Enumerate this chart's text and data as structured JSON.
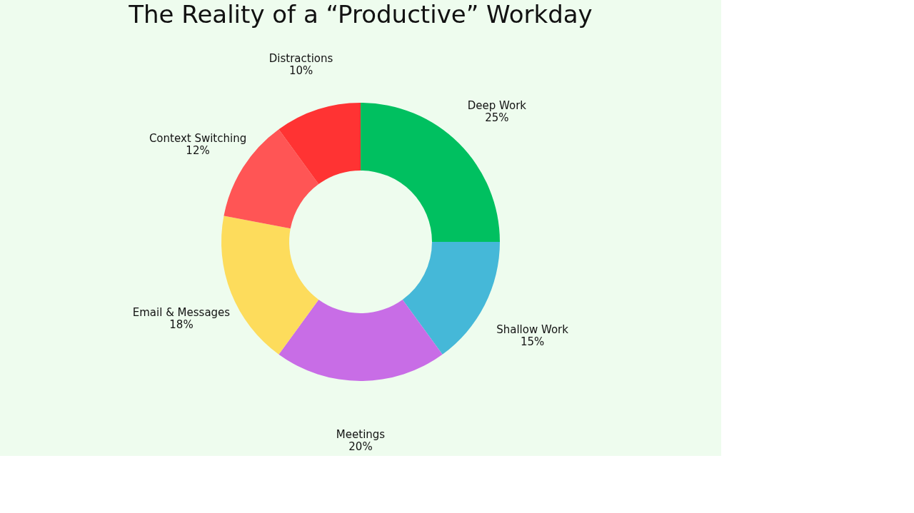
{
  "chart_data": {
    "type": "donut",
    "title": "The Reality of a “Productive” Workday",
    "categories": [
      "Deep Work",
      "Shallow Work",
      "Meetings",
      "Email & Messages",
      "Context Switching",
      "Distractions"
    ],
    "values": [
      25,
      15,
      20,
      18,
      12,
      10
    ],
    "colors": [
      "#00c060",
      "#45b8d8",
      "#c86de6",
      "#fddc5c",
      "#ff5555",
      "#ff3333"
    ],
    "value_labels": [
      "25%",
      "15%",
      "20%",
      "18%",
      "12%",
      "10%"
    ],
    "legend": false
  }
}
